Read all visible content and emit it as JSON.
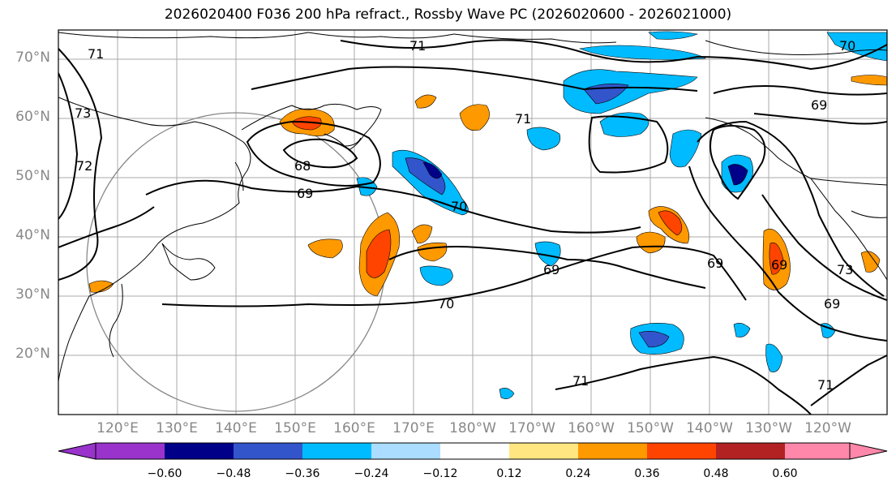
{
  "title": "2026020400 F036 200 hPa refract., Rossby Wave PC (2026020600 - 2026021000)",
  "lat_labels": [
    "70°N",
    "60°N",
    "50°N",
    "40°N",
    "30°N",
    "20°N"
  ],
  "lon_labels": [
    "120°E",
    "130°E",
    "140°E",
    "150°E",
    "160°E",
    "170°E",
    "180°W",
    "170°W",
    "160°W",
    "150°W",
    "140°W",
    "130°W",
    "120°W"
  ],
  "contour_labels": [
    "71",
    "71",
    "73",
    "72",
    "68",
    "69",
    "70",
    "69",
    "70",
    "69",
    "71",
    "69",
    "73",
    "69",
    "69",
    "71",
    "71",
    "70"
  ],
  "colorbar": {
    "ticks": [
      "−0.60",
      "−0.48",
      "−0.36",
      "−0.24",
      "−0.12",
      "0.12",
      "0.24",
      "0.36",
      "0.48",
      "0.60"
    ],
    "colors": [
      "#9933cc",
      "#000088",
      "#3355cc",
      "#00bbff",
      "#aaddff",
      "#ffffff",
      "#ffe680",
      "#ff9900",
      "#ff4400",
      "#b22222",
      "#ff88aa"
    ]
  }
}
